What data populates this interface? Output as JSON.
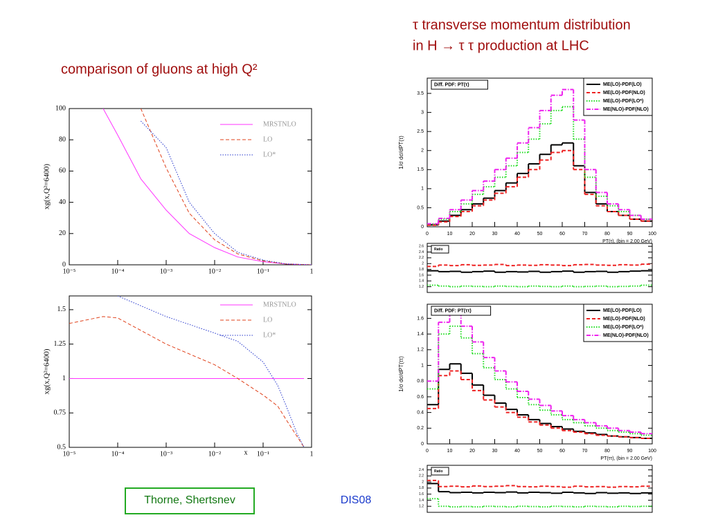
{
  "slide": {
    "title_right_1": "τ transverse momentum distribution",
    "title_right_2": "in H → τ τ production at LHC",
    "title_left": "comparison of gluons at high Q²",
    "authors": "Thorne, Shertsnev",
    "conference": "DIS08"
  },
  "chart_data": [
    {
      "type": "line",
      "xlog": true,
      "ylabel": "xg(x,Q²=6400)",
      "x": [
        5e-05,
        0.0001,
        0.0003,
        0.001,
        0.003,
        0.01,
        0.03,
        0.1,
        0.3,
        1
      ],
      "xlim": [
        1e-05,
        1
      ],
      "xticks": [
        {
          "value": 1e-05,
          "label": "10⁻⁵"
        },
        {
          "value": 0.0001,
          "label": "10⁻⁴"
        },
        {
          "value": 0.001,
          "label": "10⁻³"
        },
        {
          "value": 0.01,
          "label": "10⁻²"
        },
        {
          "value": 0.1,
          "label": "10⁻¹"
        },
        1
      ],
      "ylim": [
        0,
        100
      ],
      "yticks": [
        0,
        20,
        40,
        60,
        80,
        100
      ],
      "series": [
        {
          "name": "MRSTNLO",
          "color": "#ff33ff",
          "dash": "solid",
          "values": [
            100,
            83,
            55,
            35,
            20,
            11,
            5,
            2,
            0.5,
            0
          ]
        },
        {
          "name": "LO",
          "color": "#e0401a",
          "dash": "dashed",
          "values": [
            null,
            null,
            100,
            62,
            33,
            16,
            7,
            2.5,
            0.5,
            0
          ]
        },
        {
          "name": "LO*",
          "color": "#2233cc",
          "dash": "dotted",
          "values": [
            null,
            null,
            92,
            75,
            40,
            20,
            8,
            3,
            0.6,
            0
          ]
        }
      ]
    },
    {
      "type": "line",
      "xlog": true,
      "ylabel": "xg(x,Q²=6400)",
      "xlabel": "x",
      "x": [
        1e-05,
        5e-05,
        0.0001,
        0.001,
        0.01,
        0.03,
        0.1,
        0.2,
        0.3,
        0.5,
        0.7
      ],
      "xlim": [
        1e-05,
        1
      ],
      "xticks": [
        {
          "value": 1e-05,
          "label": "10⁻⁵"
        },
        {
          "value": 0.0001,
          "label": "10⁻⁴"
        },
        {
          "value": 0.001,
          "label": "10⁻³"
        },
        {
          "value": 0.01,
          "label": "10⁻²"
        },
        {
          "value": 0.1,
          "label": "10⁻¹"
        },
        1
      ],
      "ylim": [
        0.5,
        1.6
      ],
      "yticks": [
        0.5,
        0.75,
        1,
        1.25,
        1.5
      ],
      "series": [
        {
          "name": "MRSTNLO",
          "color": "#ff33ff",
          "dash": "solid",
          "values": [
            1,
            1,
            1,
            1,
            1,
            1,
            1,
            1,
            1,
            1,
            1
          ]
        },
        {
          "name": "LO",
          "color": "#e0401a",
          "dash": "dashed",
          "values": [
            1.4,
            1.45,
            1.44,
            1.25,
            1.1,
            1.0,
            0.88,
            0.8,
            0.7,
            0.58,
            0.5
          ]
        },
        {
          "name": "LO*",
          "color": "#2233cc",
          "dash": "dotted",
          "values": [
            null,
            null,
            1.6,
            1.45,
            1.33,
            1.27,
            1.12,
            0.95,
            0.8,
            0.6,
            0.5
          ]
        }
      ]
    },
    {
      "type": "histogram",
      "box_title": "Diff. PDF:  PT(τ)",
      "ylabel": "1/σ dσ/dPT(τ)",
      "xlabel": "PT(τ), (bin =  2.00 GeV)",
      "bins": [
        0,
        5,
        10,
        15,
        20,
        25,
        30,
        35,
        40,
        45,
        50,
        55,
        60,
        65,
        70,
        75,
        80,
        85,
        90,
        95,
        100
      ],
      "xlim": [
        0,
        100
      ],
      "xticks": [
        0,
        10,
        20,
        30,
        40,
        50,
        60,
        70,
        80,
        90,
        100
      ],
      "ylim": [
        0,
        3.9
      ],
      "yticks": [
        0,
        0.5,
        1,
        1.5,
        2,
        2.5,
        3,
        3.5
      ],
      "series": [
        {
          "name": "ME(LO)-PDF(LO)",
          "color": "#000000",
          "dash": "solid",
          "values": [
            0.05,
            0.15,
            0.3,
            0.45,
            0.6,
            0.75,
            0.95,
            1.15,
            1.4,
            1.65,
            1.9,
            2.15,
            2.2,
            1.6,
            0.9,
            0.6,
            0.4,
            0.3,
            0.2,
            0.15
          ]
        },
        {
          "name": "ME(LO)-PDF(NLO)",
          "color": "#ee2222",
          "dash": "dashed",
          "values": [
            0.04,
            0.13,
            0.27,
            0.4,
            0.55,
            0.7,
            0.88,
            1.05,
            1.3,
            1.5,
            1.75,
            1.95,
            2.0,
            1.5,
            0.85,
            0.55,
            0.4,
            0.3,
            0.2,
            0.15
          ]
        },
        {
          "name": "ME(LO)-PDF(LO*)",
          "color": "#22dd22",
          "dash": "dotted",
          "values": [
            0.07,
            0.2,
            0.4,
            0.6,
            0.85,
            1.05,
            1.3,
            1.6,
            1.95,
            2.3,
            2.7,
            3.05,
            3.15,
            2.3,
            1.3,
            0.8,
            0.55,
            0.4,
            0.3,
            0.2
          ]
        },
        {
          "name": "ME(NLO)-PDF(NLO)",
          "color": "#ee22ee",
          "dash": "dashdot",
          "values": [
            0.08,
            0.22,
            0.45,
            0.7,
            0.95,
            1.2,
            1.5,
            1.8,
            2.2,
            2.6,
            3.05,
            3.45,
            3.6,
            2.8,
            1.5,
            0.9,
            0.6,
            0.45,
            0.3,
            0.2
          ]
        }
      ]
    },
    {
      "type": "histogram",
      "box_title": "Ratio",
      "bins": [
        0,
        5,
        10,
        15,
        20,
        25,
        30,
        35,
        40,
        45,
        50,
        55,
        60,
        65,
        70,
        75,
        80,
        85,
        90,
        95,
        100
      ],
      "xlim": [
        0,
        100
      ],
      "ylim": [
        1,
        2.7
      ],
      "yticks": [
        1.2,
        1.4,
        1.6,
        1.8,
        2,
        2.2,
        2.4,
        2.6
      ],
      "series": [
        {
          "color": "#000000",
          "dash": "solid",
          "values": [
            1.75,
            1.72,
            1.73,
            1.7,
            1.72,
            1.74,
            1.7,
            1.72,
            1.71,
            1.73,
            1.7,
            1.72,
            1.74,
            1.7,
            1.72,
            1.73,
            1.7,
            1.72,
            1.74,
            1.75
          ]
        },
        {
          "color": "#ee2222",
          "dash": "dashed",
          "values": [
            1.9,
            1.95,
            1.93,
            1.96,
            1.94,
            1.95,
            1.97,
            1.93,
            1.95,
            1.94,
            1.96,
            1.95,
            1.93,
            1.96,
            1.97,
            1.95,
            1.94,
            1.96,
            1.95,
            1.98
          ]
        },
        {
          "color": "#22dd22",
          "dash": "dotted",
          "values": [
            1.25,
            1.22,
            1.2,
            1.22,
            1.21,
            1.2,
            1.22,
            1.21,
            1.2,
            1.22,
            1.21,
            1.2,
            1.22,
            1.2,
            1.21,
            1.22,
            1.2,
            1.21,
            1.22,
            1.25
          ]
        }
      ]
    },
    {
      "type": "histogram",
      "box_title": "Diff. PDF:  PT(ττ)",
      "ylabel": "1/σ dσ/dPT(ττ)",
      "xlabel": "PT(ττ), (bin =  2.00 GeV)",
      "bins": [
        0,
        5,
        10,
        15,
        20,
        25,
        30,
        35,
        40,
        45,
        50,
        55,
        60,
        65,
        70,
        75,
        80,
        85,
        90,
        95,
        100
      ],
      "xlim": [
        0,
        100
      ],
      "xticks": [
        0,
        10,
        20,
        30,
        40,
        50,
        60,
        70,
        80,
        90,
        100
      ],
      "ylim": [
        0,
        1.78
      ],
      "yticks": [
        0,
        0.2,
        0.4,
        0.6,
        0.8,
        1,
        1.2,
        1.4,
        1.6
      ],
      "series": [
        {
          "name": "ME(LO)-PDF(LO)",
          "color": "#000000",
          "dash": "solid",
          "values": [
            0.5,
            0.95,
            1.02,
            0.9,
            0.75,
            0.62,
            0.52,
            0.44,
            0.37,
            0.31,
            0.26,
            0.22,
            0.19,
            0.16,
            0.14,
            0.12,
            0.1,
            0.09,
            0.08,
            0.07
          ]
        },
        {
          "name": "ME(LO)-PDF(NLO)",
          "color": "#ee2222",
          "dash": "dashed",
          "values": [
            0.45,
            0.87,
            0.93,
            0.82,
            0.68,
            0.56,
            0.47,
            0.4,
            0.34,
            0.28,
            0.24,
            0.2,
            0.17,
            0.15,
            0.13,
            0.11,
            0.1,
            0.09,
            0.08,
            0.07
          ]
        },
        {
          "name": "ME(LO)-PDF(LO*)",
          "color": "#22dd22",
          "dash": "dotted",
          "values": [
            0.7,
            1.4,
            1.5,
            1.35,
            1.15,
            0.97,
            0.82,
            0.7,
            0.59,
            0.5,
            0.43,
            0.37,
            0.31,
            0.27,
            0.23,
            0.2,
            0.17,
            0.15,
            0.13,
            0.11
          ]
        },
        {
          "name": "ME(NLO)-PDF(NLO)",
          "color": "#ee22ee",
          "dash": "dashdot",
          "values": [
            0.8,
            1.55,
            1.68,
            1.5,
            1.3,
            1.1,
            0.93,
            0.79,
            0.67,
            0.57,
            0.49,
            0.42,
            0.36,
            0.31,
            0.27,
            0.23,
            0.2,
            0.17,
            0.15,
            0.13
          ]
        }
      ]
    },
    {
      "type": "histogram",
      "box_title": "Ratio",
      "bins": [
        0,
        5,
        10,
        15,
        20,
        25,
        30,
        35,
        40,
        45,
        50,
        55,
        60,
        65,
        70,
        75,
        80,
        85,
        90,
        95,
        100
      ],
      "xlim": [
        0,
        100
      ],
      "ylim": [
        1,
        2.55
      ],
      "yticks": [
        1.2,
        1.4,
        1.6,
        1.8,
        2,
        2.2,
        2.4
      ],
      "series": [
        {
          "color": "#000000",
          "dash": "solid",
          "values": [
            1.95,
            1.68,
            1.65,
            1.66,
            1.64,
            1.66,
            1.65,
            1.67,
            1.64,
            1.66,
            1.65,
            1.63,
            1.66,
            1.64,
            1.62,
            1.65,
            1.63,
            1.64,
            1.62,
            1.64
          ]
        },
        {
          "color": "#ee2222",
          "dash": "dashed",
          "values": [
            2.05,
            1.85,
            1.86,
            1.84,
            1.87,
            1.85,
            1.86,
            1.88,
            1.85,
            1.84,
            1.86,
            1.85,
            1.83,
            1.86,
            1.84,
            1.85,
            1.83,
            1.85,
            1.84,
            1.86
          ]
        },
        {
          "color": "#22dd22",
          "dash": "dotted",
          "values": [
            1.45,
            1.2,
            1.18,
            1.19,
            1.18,
            1.2,
            1.19,
            1.18,
            1.2,
            1.19,
            1.18,
            1.2,
            1.19,
            1.18,
            1.2,
            1.19,
            1.18,
            1.2,
            1.19,
            1.2
          ]
        }
      ]
    }
  ]
}
